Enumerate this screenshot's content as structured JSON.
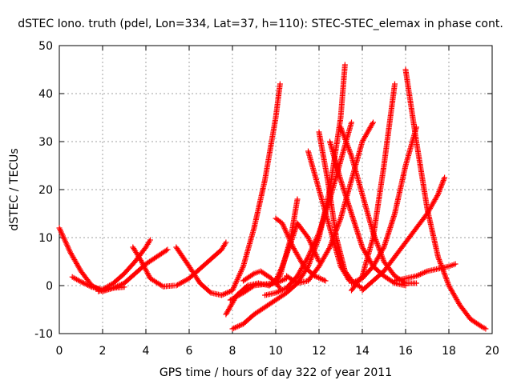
{
  "chart_data": {
    "type": "scatter",
    "title": "dSTEC Iono. truth (pdel, Lon=334, Lat=37, h=110): STEC-STEC_elemax in phase cont.",
    "xlabel": "GPS time / hours of day 322 of year 2011",
    "ylabel": "dSTEC  / TECUs",
    "xlim": [
      0,
      20
    ],
    "ylim": [
      -10,
      50
    ],
    "xticks": [
      0,
      2,
      4,
      6,
      8,
      10,
      12,
      14,
      16,
      18,
      20
    ],
    "yticks": [
      -10,
      0,
      10,
      20,
      30,
      40,
      50
    ],
    "xtick_labels": [
      "0",
      "2",
      "4",
      "6",
      "8",
      "10",
      "12",
      "14",
      "16",
      "18",
      "20"
    ],
    "ytick_labels": [
      "-10",
      "0",
      "10",
      "20",
      "30",
      "40",
      "50"
    ],
    "grid": true,
    "marker": "+",
    "color": "#ff0000",
    "series": [
      {
        "x": [
          0.0,
          0.5,
          1.0,
          1.5,
          2.0,
          2.5,
          3.0
        ],
        "y": [
          12,
          7,
          3,
          0,
          -1.2,
          -0.5,
          -0.3
        ]
      },
      {
        "x": [
          0.6,
          1.0,
          1.5,
          2.0,
          2.5,
          3.0,
          3.5,
          4.0,
          4.2
        ],
        "y": [
          1.8,
          0.8,
          -0.3,
          -0.8,
          0.5,
          2.5,
          5,
          8,
          9.5
        ]
      },
      {
        "x": [
          1.8,
          2.5,
          3.0,
          3.5,
          4.0,
          4.5,
          5.0
        ],
        "y": [
          -1.2,
          -0.5,
          0.5,
          2.5,
          4.5,
          6,
          7.5
        ]
      },
      {
        "x": [
          3.4,
          3.8,
          4.2,
          4.8,
          5.3
        ],
        "y": [
          8,
          5,
          1.5,
          -0.2,
          0
        ]
      },
      {
        "x": [
          5.4,
          6.0,
          6.5,
          7.0,
          7.5,
          7.7
        ],
        "y": [
          0,
          1.5,
          3.5,
          5.5,
          7.5,
          9
        ]
      },
      {
        "x": [
          5.4,
          6.0,
          6.5,
          7.0,
          7.5,
          8.0,
          8.5,
          9.0,
          9.5,
          10.0,
          10.2
        ],
        "y": [
          8,
          4,
          0.5,
          -1.5,
          -2,
          -1,
          4,
          12,
          22,
          35,
          42
        ]
      },
      {
        "x": [
          7.7,
          8.2,
          8.7,
          9.2,
          9.7,
          10.2,
          10.7,
          11.0
        ],
        "y": [
          -6,
          -2,
          0,
          0.5,
          0,
          2,
          10,
          18
        ]
      },
      {
        "x": [
          7.9,
          8.5,
          9.0,
          9.5,
          10.0,
          10.5
        ],
        "y": [
          -3,
          -1.5,
          0,
          0.3,
          0.5,
          1.5
        ]
      },
      {
        "x": [
          8.0,
          8.5,
          9.0,
          9.5,
          10.0,
          10.5,
          11.0,
          11.5,
          12.0,
          12.5,
          13.0,
          13.2
        ],
        "y": [
          -9,
          -8,
          -6,
          -4.5,
          -3,
          -1.5,
          0.5,
          4,
          10,
          20,
          35,
          46
        ]
      },
      {
        "x": [
          8.5,
          9.0,
          9.3,
          9.8,
          10.2
        ],
        "y": [
          1,
          2.5,
          3,
          1.5,
          -0.5
        ]
      },
      {
        "x": [
          9.5,
          10.0,
          10.5,
          11.0,
          11.5,
          12.0,
          12.5,
          13.0,
          13.5
        ],
        "y": [
          -2,
          -1.5,
          -0.5,
          2,
          6,
          11,
          18,
          26,
          34
        ]
      },
      {
        "x": [
          9.7,
          10.0,
          10.3,
          10.7,
          11.0,
          11.5,
          12.0
        ],
        "y": [
          0,
          1,
          4,
          9,
          13,
          10,
          5
        ]
      },
      {
        "x": [
          10.0,
          10.3,
          10.8,
          11.3,
          11.8,
          12.3
        ],
        "y": [
          14,
          13,
          8,
          4,
          2,
          1
        ]
      },
      {
        "x": [
          10.5,
          11.0,
          11.5,
          12.0,
          12.5,
          13.0,
          13.5,
          14.0,
          14.5
        ],
        "y": [
          2,
          0.5,
          1,
          4,
          8,
          14,
          22,
          30,
          34
        ]
      },
      {
        "x": [
          11.5,
          12.0,
          12.5,
          13.0,
          13.4
        ],
        "y": [
          28,
          20,
          12,
          4,
          1
        ]
      },
      {
        "x": [
          12.0,
          12.4,
          12.8,
          13.2,
          13.6,
          14.0
        ],
        "y": [
          32,
          22,
          10,
          3,
          0.5,
          -0.5
        ]
      },
      {
        "x": [
          12.5,
          13.0,
          13.5,
          14.0,
          14.5,
          15.0,
          15.5,
          16.0
        ],
        "y": [
          30,
          22,
          15,
          8,
          4,
          2,
          0.5,
          0
        ]
      },
      {
        "x": [
          13.0,
          13.5,
          14.0,
          14.5,
          15.0,
          15.5,
          16.0,
          16.5
        ],
        "y": [
          33,
          27,
          19,
          11,
          5,
          2,
          0.5,
          0.5
        ]
      },
      {
        "x": [
          13.5,
          14.0,
          14.5,
          15.0,
          15.5,
          16.0,
          16.5
        ],
        "y": [
          0.5,
          1.5,
          4,
          8,
          15,
          25,
          33
        ]
      },
      {
        "x": [
          13.5,
          14.0,
          14.5,
          15.0,
          15.5
        ],
        "y": [
          -1,
          2,
          10,
          25,
          42
        ]
      },
      {
        "x": [
          14.0,
          14.5,
          15.0,
          15.5,
          16.0,
          16.5,
          17.0,
          17.5,
          17.8
        ],
        "y": [
          -1,
          1,
          3,
          6,
          9,
          12,
          15,
          19,
          22.5
        ]
      },
      {
        "x": [
          16.0,
          16.5,
          17.0,
          17.5,
          18.0,
          18.5,
          19.0,
          19.5,
          19.7
        ],
        "y": [
          45,
          30,
          16,
          6,
          0,
          -4,
          -7,
          -8.5,
          -9
        ]
      },
      {
        "x": [
          15.5,
          16.0,
          16.5,
          17.0,
          17.5,
          18.0,
          18.3
        ],
        "y": [
          1,
          1.5,
          2,
          3,
          3.5,
          4,
          4.5
        ]
      }
    ]
  }
}
